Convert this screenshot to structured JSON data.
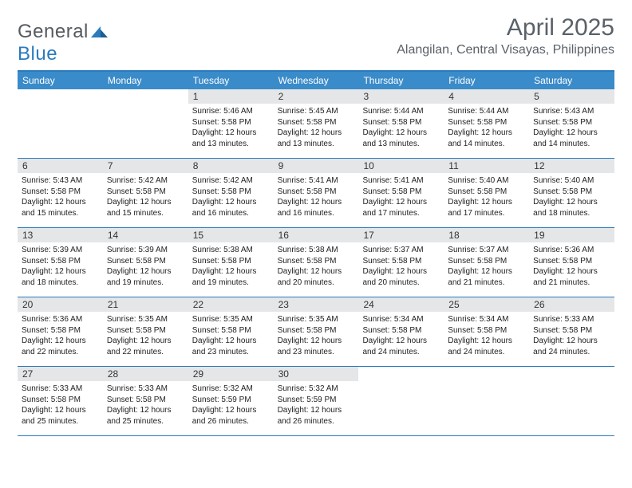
{
  "brand": {
    "text_a": "General",
    "text_b": "Blue"
  },
  "title": "April 2025",
  "location": "Alangilan, Central Visayas, Philippines",
  "colors": {
    "accent": "#2b7bbd",
    "header_bg": "#3a8bc9",
    "daynum_bg": "#e4e6e8",
    "text_muted": "#5a6168",
    "text": "#222222",
    "white": "#ffffff"
  },
  "days_of_week": [
    "Sunday",
    "Monday",
    "Tuesday",
    "Wednesday",
    "Thursday",
    "Friday",
    "Saturday"
  ],
  "weeks": [
    [
      null,
      null,
      {
        "n": "1",
        "sunrise": "5:46 AM",
        "sunset": "5:58 PM",
        "daylight": "12 hours and 13 minutes."
      },
      {
        "n": "2",
        "sunrise": "5:45 AM",
        "sunset": "5:58 PM",
        "daylight": "12 hours and 13 minutes."
      },
      {
        "n": "3",
        "sunrise": "5:44 AM",
        "sunset": "5:58 PM",
        "daylight": "12 hours and 13 minutes."
      },
      {
        "n": "4",
        "sunrise": "5:44 AM",
        "sunset": "5:58 PM",
        "daylight": "12 hours and 14 minutes."
      },
      {
        "n": "5",
        "sunrise": "5:43 AM",
        "sunset": "5:58 PM",
        "daylight": "12 hours and 14 minutes."
      }
    ],
    [
      {
        "n": "6",
        "sunrise": "5:43 AM",
        "sunset": "5:58 PM",
        "daylight": "12 hours and 15 minutes."
      },
      {
        "n": "7",
        "sunrise": "5:42 AM",
        "sunset": "5:58 PM",
        "daylight": "12 hours and 15 minutes."
      },
      {
        "n": "8",
        "sunrise": "5:42 AM",
        "sunset": "5:58 PM",
        "daylight": "12 hours and 16 minutes."
      },
      {
        "n": "9",
        "sunrise": "5:41 AM",
        "sunset": "5:58 PM",
        "daylight": "12 hours and 16 minutes."
      },
      {
        "n": "10",
        "sunrise": "5:41 AM",
        "sunset": "5:58 PM",
        "daylight": "12 hours and 17 minutes."
      },
      {
        "n": "11",
        "sunrise": "5:40 AM",
        "sunset": "5:58 PM",
        "daylight": "12 hours and 17 minutes."
      },
      {
        "n": "12",
        "sunrise": "5:40 AM",
        "sunset": "5:58 PM",
        "daylight": "12 hours and 18 minutes."
      }
    ],
    [
      {
        "n": "13",
        "sunrise": "5:39 AM",
        "sunset": "5:58 PM",
        "daylight": "12 hours and 18 minutes."
      },
      {
        "n": "14",
        "sunrise": "5:39 AM",
        "sunset": "5:58 PM",
        "daylight": "12 hours and 19 minutes."
      },
      {
        "n": "15",
        "sunrise": "5:38 AM",
        "sunset": "5:58 PM",
        "daylight": "12 hours and 19 minutes."
      },
      {
        "n": "16",
        "sunrise": "5:38 AM",
        "sunset": "5:58 PM",
        "daylight": "12 hours and 20 minutes."
      },
      {
        "n": "17",
        "sunrise": "5:37 AM",
        "sunset": "5:58 PM",
        "daylight": "12 hours and 20 minutes."
      },
      {
        "n": "18",
        "sunrise": "5:37 AM",
        "sunset": "5:58 PM",
        "daylight": "12 hours and 21 minutes."
      },
      {
        "n": "19",
        "sunrise": "5:36 AM",
        "sunset": "5:58 PM",
        "daylight": "12 hours and 21 minutes."
      }
    ],
    [
      {
        "n": "20",
        "sunrise": "5:36 AM",
        "sunset": "5:58 PM",
        "daylight": "12 hours and 22 minutes."
      },
      {
        "n": "21",
        "sunrise": "5:35 AM",
        "sunset": "5:58 PM",
        "daylight": "12 hours and 22 minutes."
      },
      {
        "n": "22",
        "sunrise": "5:35 AM",
        "sunset": "5:58 PM",
        "daylight": "12 hours and 23 minutes."
      },
      {
        "n": "23",
        "sunrise": "5:35 AM",
        "sunset": "5:58 PM",
        "daylight": "12 hours and 23 minutes."
      },
      {
        "n": "24",
        "sunrise": "5:34 AM",
        "sunset": "5:58 PM",
        "daylight": "12 hours and 24 minutes."
      },
      {
        "n": "25",
        "sunrise": "5:34 AM",
        "sunset": "5:58 PM",
        "daylight": "12 hours and 24 minutes."
      },
      {
        "n": "26",
        "sunrise": "5:33 AM",
        "sunset": "5:58 PM",
        "daylight": "12 hours and 24 minutes."
      }
    ],
    [
      {
        "n": "27",
        "sunrise": "5:33 AM",
        "sunset": "5:58 PM",
        "daylight": "12 hours and 25 minutes."
      },
      {
        "n": "28",
        "sunrise": "5:33 AM",
        "sunset": "5:58 PM",
        "daylight": "12 hours and 25 minutes."
      },
      {
        "n": "29",
        "sunrise": "5:32 AM",
        "sunset": "5:59 PM",
        "daylight": "12 hours and 26 minutes."
      },
      {
        "n": "30",
        "sunrise": "5:32 AM",
        "sunset": "5:59 PM",
        "daylight": "12 hours and 26 minutes."
      },
      null,
      null,
      null
    ]
  ],
  "labels": {
    "sunrise": "Sunrise:",
    "sunset": "Sunset:",
    "daylight": "Daylight:"
  }
}
